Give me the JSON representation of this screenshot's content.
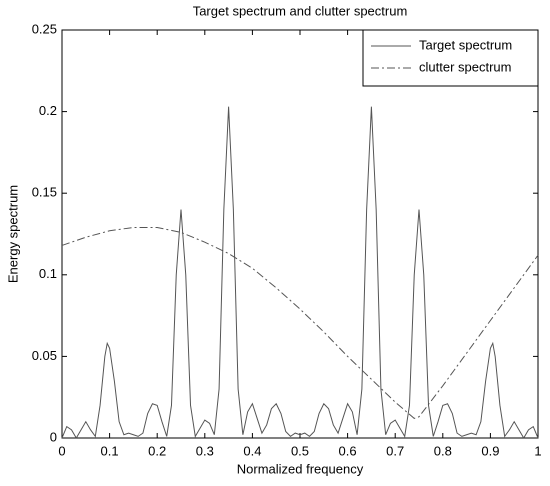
{
  "chart_data": {
    "type": "line",
    "title": "Target spectrum and clutter spectrum",
    "xlabel": "Normalized frequency",
    "ylabel": "Energy spectrum",
    "xlim": [
      0,
      1
    ],
    "ylim": [
      0,
      0.25
    ],
    "xticks": [
      0,
      0.1,
      0.2,
      0.3,
      0.4,
      0.5,
      0.6,
      0.7,
      0.8,
      0.9,
      1
    ],
    "yticks": [
      0,
      0.05,
      0.1,
      0.15,
      0.2,
      0.25
    ],
    "legend": "upper right",
    "series": [
      {
        "name": "Target spectrum",
        "color": "#555555",
        "style": "solid",
        "x": [
          0,
          0.01,
          0.02,
          0.03,
          0.04,
          0.05,
          0.06,
          0.07,
          0.08,
          0.09,
          0.095,
          0.1,
          0.11,
          0.12,
          0.13,
          0.14,
          0.15,
          0.16,
          0.17,
          0.18,
          0.19,
          0.2,
          0.21,
          0.22,
          0.23,
          0.24,
          0.25,
          0.26,
          0.27,
          0.28,
          0.29,
          0.3,
          0.31,
          0.32,
          0.33,
          0.34,
          0.35,
          0.36,
          0.37,
          0.38,
          0.39,
          0.4,
          0.41,
          0.42,
          0.43,
          0.44,
          0.45,
          0.46,
          0.47,
          0.48,
          0.49,
          0.5,
          0.51,
          0.52,
          0.53,
          0.54,
          0.55,
          0.56,
          0.57,
          0.58,
          0.59,
          0.6,
          0.61,
          0.62,
          0.63,
          0.64,
          0.65,
          0.66,
          0.67,
          0.68,
          0.69,
          0.7,
          0.71,
          0.72,
          0.73,
          0.74,
          0.75,
          0.76,
          0.77,
          0.78,
          0.79,
          0.8,
          0.81,
          0.82,
          0.83,
          0.84,
          0.85,
          0.86,
          0.87,
          0.88,
          0.89,
          0.9,
          0.905,
          0.91,
          0.92,
          0.93,
          0.94,
          0.95,
          0.96,
          0.97,
          0.98,
          0.99,
          1
        ],
        "values": [
          0,
          0.007,
          0.005,
          0,
          0.005,
          0.01,
          0.005,
          0.001,
          0.02,
          0.05,
          0.058,
          0.055,
          0.035,
          0.01,
          0.002,
          0.003,
          0.002,
          0.001,
          0.003,
          0.015,
          0.021,
          0.02,
          0.01,
          0.001,
          0.02,
          0.1,
          0.14,
          0.1,
          0.02,
          0.001,
          0.006,
          0.011,
          0.009,
          0.002,
          0.03,
          0.14,
          0.203,
          0.14,
          0.03,
          0.002,
          0.016,
          0.021,
          0.012,
          0.003,
          0.008,
          0.018,
          0.021,
          0.015,
          0.004,
          0.001,
          0.003,
          0.002,
          0.003,
          0.001,
          0.004,
          0.015,
          0.021,
          0.018,
          0.008,
          0.003,
          0.012,
          0.021,
          0.016,
          0.002,
          0.03,
          0.14,
          0.203,
          0.14,
          0.03,
          0.002,
          0.009,
          0.011,
          0.006,
          0.001,
          0.02,
          0.1,
          0.14,
          0.1,
          0.02,
          0.001,
          0.01,
          0.02,
          0.021,
          0.015,
          0.003,
          0.001,
          0.002,
          0.003,
          0.002,
          0.01,
          0.035,
          0.055,
          0.058,
          0.05,
          0.02,
          0.001,
          0.005,
          0.01,
          0.005,
          0,
          0.005,
          0.007,
          0
        ]
      },
      {
        "name": "clutter spectrum",
        "color": "#555555",
        "style": "dashdot",
        "x": [
          0,
          0.05,
          0.1,
          0.15,
          0.2,
          0.25,
          0.3,
          0.35,
          0.4,
          0.45,
          0.5,
          0.55,
          0.6,
          0.65,
          0.7,
          0.74,
          0.75,
          0.8,
          0.85,
          0.9,
          0.95,
          1
        ],
        "values": [
          0.118,
          0.123,
          0.127,
          0.129,
          0.129,
          0.126,
          0.12,
          0.113,
          0.104,
          0.092,
          0.079,
          0.065,
          0.05,
          0.036,
          0.022,
          0.012,
          0.013,
          0.032,
          0.052,
          0.072,
          0.092,
          0.112
        ]
      }
    ]
  }
}
